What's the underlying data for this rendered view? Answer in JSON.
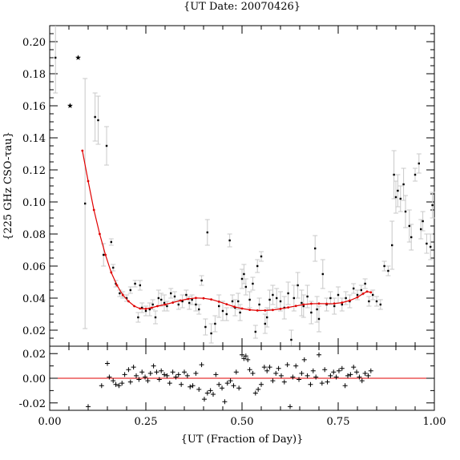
{
  "chart_data": [
    {
      "type": "scatter",
      "title": "{UT Date: 20070426}",
      "ylabel": "{225 GHz CSO-τau}",
      "xlabel": "",
      "xlim": [
        0.0,
        1.0
      ],
      "ylim": [
        0.01,
        0.21
      ],
      "y_ticks": [
        0.02,
        0.04,
        0.06,
        0.08,
        0.1,
        0.12,
        0.14,
        0.16,
        0.18,
        0.2
      ],
      "y_tick_labels": [
        "0.02",
        "0.04",
        "0.06",
        "0.08",
        "0.10",
        "0.12",
        "0.14",
        "0.16",
        "0.18",
        "0.20"
      ],
      "x_ticks": [
        0,
        0.25,
        0.5,
        0.75,
        1.0
      ],
      "grid": false,
      "colors": {
        "points": "#000000",
        "error_bars": "#c8c8c8",
        "fit": "#e00000"
      },
      "star_points": {
        "x": [
          0.053,
          0.074
        ],
        "y": [
          0.16,
          0.19
        ]
      },
      "points": {
        "x": [
          0.015,
          0.092,
          0.118,
          0.126,
          0.14,
          0.148,
          0.16,
          0.165,
          0.172,
          0.182,
          0.19,
          0.2,
          0.21,
          0.222,
          0.23,
          0.235,
          0.24,
          0.25,
          0.26,
          0.268,
          0.275,
          0.283,
          0.29,
          0.298,
          0.305,
          0.315,
          0.325,
          0.335,
          0.345,
          0.355,
          0.363,
          0.37,
          0.38,
          0.388,
          0.395,
          0.405,
          0.41,
          0.42,
          0.43,
          0.44,
          0.45,
          0.46,
          0.468,
          0.475,
          0.482,
          0.49,
          0.495,
          0.5,
          0.505,
          0.51,
          0.52,
          0.528,
          0.535,
          0.54,
          0.545,
          0.55,
          0.56,
          0.565,
          0.572,
          0.58,
          0.59,
          0.6,
          0.61,
          0.62,
          0.628,
          0.635,
          0.645,
          0.655,
          0.66,
          0.67,
          0.68,
          0.69,
          0.695,
          0.7,
          0.71,
          0.72,
          0.73,
          0.74,
          0.75,
          0.76,
          0.77,
          0.78,
          0.79,
          0.8,
          0.81,
          0.82,
          0.83,
          0.84,
          0.85,
          0.86,
          0.87,
          0.88,
          0.89,
          0.895,
          0.9,
          0.905,
          0.912,
          0.92,
          0.925,
          0.935,
          0.94,
          0.95,
          0.96,
          0.965,
          0.97,
          0.98,
          0.99,
          0.995
        ],
        "y": [
          0.19,
          0.099,
          0.153,
          0.151,
          0.067,
          0.135,
          0.075,
          0.059,
          0.049,
          0.043,
          0.042,
          0.04,
          0.045,
          0.049,
          0.028,
          0.048,
          0.034,
          0.032,
          0.033,
          0.036,
          0.028,
          0.04,
          0.039,
          0.037,
          0.035,
          0.043,
          0.041,
          0.036,
          0.038,
          0.042,
          0.037,
          0.039,
          0.036,
          0.033,
          0.051,
          0.022,
          0.081,
          0.018,
          0.024,
          0.035,
          0.032,
          0.03,
          0.076,
          0.038,
          0.034,
          0.038,
          0.031,
          0.052,
          0.055,
          0.047,
          0.039,
          0.049,
          0.019,
          0.06,
          0.036,
          0.066,
          0.024,
          0.028,
          0.039,
          0.042,
          0.04,
          0.038,
          0.034,
          0.043,
          0.014,
          0.04,
          0.048,
          0.037,
          0.035,
          0.041,
          0.031,
          0.071,
          0.033,
          0.027,
          0.055,
          0.036,
          0.04,
          0.035,
          0.042,
          0.036,
          0.04,
          0.038,
          0.046,
          0.042,
          0.045,
          0.049,
          0.038,
          0.042,
          0.038,
          0.036,
          0.06,
          0.057,
          0.073,
          0.117,
          0.103,
          0.107,
          0.102,
          0.111,
          0.094,
          0.085,
          0.078,
          0.117,
          0.124,
          0.083,
          0.088,
          0.074,
          0.072,
          0.098
        ],
        "err": [
          0.022,
          0.078,
          0.015,
          0.015,
          0.007,
          0.012,
          0.002,
          0.002,
          0.002,
          0.002,
          0.002,
          0.002,
          0.002,
          0.002,
          0.003,
          0.003,
          0.003,
          0.003,
          0.004,
          0.003,
          0.004,
          0.005,
          0.004,
          0.005,
          0.003,
          0.003,
          0.003,
          0.003,
          0.004,
          0.003,
          0.004,
          0.003,
          0.004,
          0.003,
          0.003,
          0.005,
          0.008,
          0.006,
          0.005,
          0.007,
          0.006,
          0.004,
          0.004,
          0.004,
          0.005,
          0.005,
          0.005,
          0.006,
          0.006,
          0.005,
          0.005,
          0.004,
          0.004,
          0.004,
          0.004,
          0.003,
          0.006,
          0.006,
          0.006,
          0.006,
          0.006,
          0.006,
          0.007,
          0.007,
          0.006,
          0.008,
          0.008,
          0.008,
          0.007,
          0.007,
          0.007,
          0.008,
          0.008,
          0.008,
          0.009,
          0.004,
          0.004,
          0.005,
          0.005,
          0.004,
          0.004,
          0.004,
          0.003,
          0.003,
          0.003,
          0.003,
          0.003,
          0.003,
          0.003,
          0.003,
          0.003,
          0.003,
          0.015,
          0.015,
          0.01,
          0.01,
          0.008,
          0.01,
          0.01,
          0.01,
          0.008,
          0.004,
          0.006,
          0.006,
          0.006,
          0.006,
          0.008,
          0.008
        ]
      },
      "fit_curve": {
        "x": [
          0.085,
          0.1,
          0.115,
          0.13,
          0.145,
          0.16,
          0.175,
          0.19,
          0.205,
          0.22,
          0.235,
          0.25,
          0.265,
          0.28,
          0.3,
          0.32,
          0.34,
          0.36,
          0.38,
          0.4,
          0.42,
          0.44,
          0.46,
          0.48,
          0.5,
          0.52,
          0.54,
          0.56,
          0.58,
          0.6,
          0.62,
          0.64,
          0.66,
          0.68,
          0.7,
          0.72,
          0.74,
          0.76,
          0.78,
          0.8,
          0.815,
          0.825,
          0.835
        ],
        "y": [
          0.132,
          0.113,
          0.095,
          0.08,
          0.067,
          0.056,
          0.048,
          0.042,
          0.038,
          0.035,
          0.0335,
          0.0333,
          0.034,
          0.035,
          0.036,
          0.0372,
          0.0385,
          0.0395,
          0.0401,
          0.0399,
          0.0392,
          0.0378,
          0.0362,
          0.0346,
          0.0335,
          0.0327,
          0.0323,
          0.0323,
          0.0326,
          0.0333,
          0.0342,
          0.0351,
          0.036,
          0.0365,
          0.0366,
          0.0365,
          0.0366,
          0.0372,
          0.0385,
          0.0405,
          0.0428,
          0.0441,
          0.0436
        ]
      }
    },
    {
      "type": "scatter",
      "xlabel": "{UT (Fraction of Day)}",
      "ylabel": "",
      "xlim": [
        0.0,
        1.0
      ],
      "ylim": [
        -0.026,
        0.026
      ],
      "y_ticks": [
        -0.02,
        0.0,
        0.02
      ],
      "y_tick_labels": [
        "-0.02",
        "0.00",
        "0.02"
      ],
      "x_ticks": [
        0.0,
        0.25,
        0.5,
        0.75,
        1.0
      ],
      "x_tick_labels": [
        "0.00",
        "0.25",
        "0.50",
        "0.75",
        "1.00"
      ],
      "zero_line": 0.0,
      "colors": {
        "markers": "#000000",
        "zero_line": "#e00000"
      },
      "residuals": {
        "x": [
          0.1,
          0.135,
          0.15,
          0.155,
          0.165,
          0.172,
          0.18,
          0.188,
          0.195,
          0.205,
          0.21,
          0.218,
          0.225,
          0.232,
          0.24,
          0.248,
          0.255,
          0.262,
          0.27,
          0.278,
          0.285,
          0.29,
          0.298,
          0.305,
          0.312,
          0.32,
          0.328,
          0.335,
          0.342,
          0.35,
          0.358,
          0.365,
          0.372,
          0.38,
          0.388,
          0.395,
          0.402,
          0.41,
          0.418,
          0.425,
          0.432,
          0.44,
          0.448,
          0.455,
          0.462,
          0.47,
          0.478,
          0.485,
          0.492,
          0.5,
          0.505,
          0.51,
          0.515,
          0.52,
          0.528,
          0.535,
          0.542,
          0.55,
          0.558,
          0.565,
          0.572,
          0.58,
          0.588,
          0.595,
          0.602,
          0.61,
          0.618,
          0.625,
          0.632,
          0.64,
          0.648,
          0.655,
          0.662,
          0.67,
          0.678,
          0.685,
          0.692,
          0.7,
          0.708,
          0.715,
          0.722,
          0.73,
          0.738,
          0.745,
          0.752,
          0.76,
          0.768,
          0.775,
          0.782,
          0.79,
          0.798,
          0.805,
          0.812,
          0.82,
          0.828,
          0.835
        ],
        "y": [
          -0.023,
          -0.006,
          0.012,
          0.001,
          -0.002,
          -0.005,
          -0.006,
          -0.004,
          0.003,
          0.007,
          -0.003,
          0.009,
          0.002,
          -0.001,
          0.005,
          0.001,
          -0.002,
          0.004,
          0.01,
          0.005,
          -0.001,
          0.006,
          0.003,
          0.002,
          -0.004,
          0.005,
          0.001,
          0.003,
          -0.005,
          0.005,
          0.002,
          -0.007,
          -0.006,
          0.004,
          -0.009,
          0.011,
          -0.017,
          -0.012,
          -0.01,
          -0.013,
          0.003,
          -0.005,
          -0.008,
          -0.019,
          -0.004,
          -0.002,
          -0.006,
          0.005,
          -0.008,
          0.019,
          0.016,
          0.018,
          0.015,
          0.007,
          0.004,
          -0.012,
          -0.009,
          -0.005,
          0.009,
          0.006,
          0.009,
          -0.002,
          0.004,
          0.008,
          0.002,
          -0.003,
          0.011,
          -0.023,
          0.001,
          0.01,
          -0.001,
          0.004,
          0.015,
          0.002,
          -0.005,
          0.006,
          0.001,
          0.019,
          -0.004,
          0.007,
          -0.003,
          0.002,
          0.005,
          0.001,
          0.006,
          0.008,
          -0.006,
          0.002,
          0.003,
          0.009,
          0.005,
          0.001,
          -0.002,
          0.004,
          0.002,
          0.006
        ]
      }
    }
  ]
}
